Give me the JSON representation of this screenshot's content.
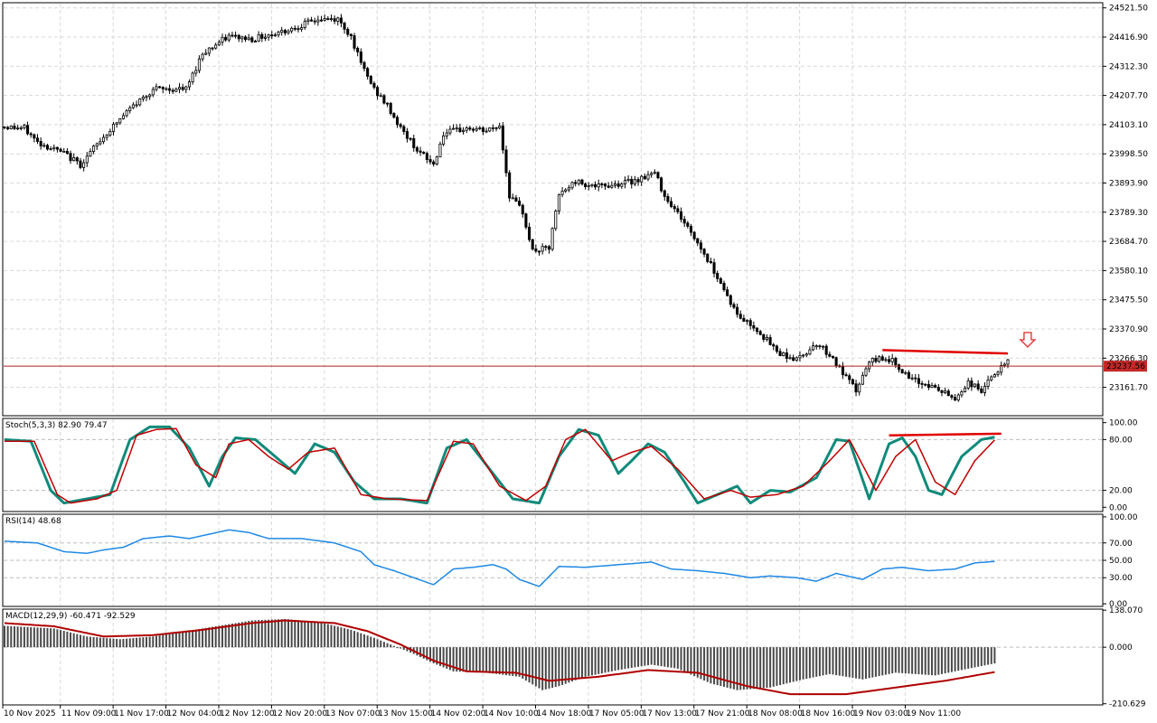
{
  "chart_data": [
    {
      "type": "candlestick",
      "name": "price",
      "ylim": [
        23060,
        24540
      ],
      "y_ticks": [
        "24521.50",
        "24416.90",
        "24312.30",
        "24207.70",
        "24103.10",
        "23998.50",
        "23893.90",
        "23789.30",
        "23684.70",
        "23580.10",
        "23475.50",
        "23370.90",
        "23266.30",
        "23161.70"
      ],
      "current_price": 23237.56,
      "current_price_label": "23237.56",
      "waypoints": [
        [
          0,
          24095
        ],
        [
          6,
          24090
        ],
        [
          10,
          24040
        ],
        [
          18,
          24000
        ],
        [
          23,
          23960
        ],
        [
          30,
          24060
        ],
        [
          38,
          24160
        ],
        [
          45,
          24230
        ],
        [
          55,
          24230
        ],
        [
          60,
          24360
        ],
        [
          68,
          24420
        ],
        [
          75,
          24410
        ],
        [
          85,
          24440
        ],
        [
          95,
          24480
        ],
        [
          101,
          24480
        ],
        [
          105,
          24420
        ],
        [
          108,
          24320
        ],
        [
          112,
          24230
        ],
        [
          116,
          24170
        ],
        [
          120,
          24090
        ],
        [
          126,
          24000
        ],
        [
          130,
          23960
        ],
        [
          133,
          24070
        ],
        [
          140,
          24090
        ],
        [
          146,
          24080
        ],
        [
          150,
          24100
        ],
        [
          153,
          23850
        ],
        [
          157,
          23790
        ],
        [
          160,
          23650
        ],
        [
          165,
          23660
        ],
        [
          168,
          23850
        ],
        [
          173,
          23900
        ],
        [
          180,
          23880
        ],
        [
          190,
          23900
        ],
        [
          197,
          23930
        ],
        [
          200,
          23850
        ],
        [
          205,
          23770
        ],
        [
          210,
          23680
        ],
        [
          216,
          23560
        ],
        [
          222,
          23420
        ],
        [
          228,
          23370
        ],
        [
          234,
          23290
        ],
        [
          240,
          23260
        ],
        [
          246,
          23320
        ],
        [
          250,
          23280
        ],
        [
          254,
          23210
        ],
        [
          258,
          23150
        ],
        [
          262,
          23250
        ],
        [
          266,
          23270
        ],
        [
          270,
          23250
        ],
        [
          274,
          23190
        ],
        [
          280,
          23170
        ],
        [
          285,
          23140
        ],
        [
          288,
          23120
        ],
        [
          292,
          23180
        ],
        [
          296,
          23150
        ],
        [
          300,
          23210
        ],
        [
          304,
          23250
        ]
      ],
      "resistance_line": {
        "from_index": 266,
        "to_index": 304,
        "from_value": 23295,
        "to_value": 23283
      },
      "arrow": {
        "index": 310,
        "value": 23300,
        "direction": "down"
      }
    },
    {
      "type": "line",
      "name": "stochastic",
      "label": "Stoch(5,3,3) 82.90 79.47",
      "ylim": [
        -5,
        105
      ],
      "y_ticks": [
        {
          "v": 100,
          "t": "100.00"
        },
        {
          "v": 80,
          "t": "80.00"
        },
        {
          "v": 20,
          "t": "20.00"
        },
        {
          "v": 0,
          "t": "0.00"
        }
      ],
      "levels": [
        80,
        20
      ],
      "main_waypoints": [
        [
          0,
          80
        ],
        [
          8,
          78
        ],
        [
          14,
          20
        ],
        [
          18,
          5
        ],
        [
          25,
          10
        ],
        [
          32,
          15
        ],
        [
          38,
          80
        ],
        [
          44,
          95
        ],
        [
          50,
          95
        ],
        [
          56,
          70
        ],
        [
          62,
          25
        ],
        [
          66,
          60
        ],
        [
          70,
          82
        ],
        [
          76,
          80
        ],
        [
          82,
          60
        ],
        [
          88,
          40
        ],
        [
          94,
          75
        ],
        [
          100,
          65
        ],
        [
          106,
          30
        ],
        [
          112,
          10
        ],
        [
          120,
          10
        ],
        [
          128,
          5
        ],
        [
          134,
          70
        ],
        [
          140,
          80
        ],
        [
          146,
          50
        ],
        [
          154,
          10
        ],
        [
          162,
          5
        ],
        [
          168,
          60
        ],
        [
          174,
          92
        ],
        [
          180,
          85
        ],
        [
          186,
          40
        ],
        [
          190,
          55
        ],
        [
          195,
          75
        ],
        [
          200,
          65
        ],
        [
          206,
          30
        ],
        [
          210,
          5
        ],
        [
          216,
          15
        ],
        [
          222,
          25
        ],
        [
          226,
          5
        ],
        [
          232,
          20
        ],
        [
          238,
          18
        ],
        [
          246,
          35
        ],
        [
          252,
          80
        ],
        [
          256,
          78
        ],
        [
          262,
          10
        ],
        [
          268,
          75
        ],
        [
          272,
          82
        ],
        [
          276,
          60
        ],
        [
          280,
          20
        ],
        [
          284,
          15
        ],
        [
          290,
          60
        ],
        [
          296,
          80
        ],
        [
          300,
          82.9
        ]
      ],
      "signal_waypoints": [
        [
          0,
          78
        ],
        [
          9,
          78
        ],
        [
          16,
          15
        ],
        [
          20,
          5
        ],
        [
          28,
          10
        ],
        [
          34,
          20
        ],
        [
          40,
          85
        ],
        [
          46,
          92
        ],
        [
          52,
          93
        ],
        [
          58,
          50
        ],
        [
          64,
          35
        ],
        [
          68,
          75
        ],
        [
          74,
          80
        ],
        [
          80,
          60
        ],
        [
          86,
          45
        ],
        [
          92,
          65
        ],
        [
          100,
          70
        ],
        [
          108,
          15
        ],
        [
          116,
          10
        ],
        [
          128,
          8
        ],
        [
          136,
          78
        ],
        [
          142,
          75
        ],
        [
          150,
          25
        ],
        [
          158,
          8
        ],
        [
          164,
          25
        ],
        [
          170,
          80
        ],
        [
          176,
          92
        ],
        [
          184,
          55
        ],
        [
          190,
          65
        ],
        [
          196,
          72
        ],
        [
          204,
          45
        ],
        [
          212,
          10
        ],
        [
          220,
          20
        ],
        [
          226,
          12
        ],
        [
          234,
          15
        ],
        [
          242,
          25
        ],
        [
          250,
          55
        ],
        [
          256,
          80
        ],
        [
          264,
          20
        ],
        [
          270,
          60
        ],
        [
          276,
          80
        ],
        [
          282,
          30
        ],
        [
          288,
          15
        ],
        [
          294,
          55
        ],
        [
          300,
          79.47
        ]
      ],
      "trend_line": {
        "from_index": 268,
        "to_index": 302,
        "from_value": 85,
        "to_value": 87
      }
    },
    {
      "type": "line",
      "name": "rsi",
      "label": "RSI(14) 48.68",
      "ylim": [
        -3,
        103
      ],
      "y_ticks": [
        {
          "v": 100,
          "t": "100.00"
        },
        {
          "v": 70,
          "t": "70.00"
        },
        {
          "v": 50,
          "t": "50.00"
        },
        {
          "v": 30,
          "t": "30.00"
        },
        {
          "v": 0,
          "t": "0.00"
        }
      ],
      "levels": [
        70,
        50,
        30
      ],
      "waypoints": [
        [
          0,
          72
        ],
        [
          10,
          70
        ],
        [
          18,
          60
        ],
        [
          25,
          58
        ],
        [
          30,
          62
        ],
        [
          36,
          65
        ],
        [
          42,
          75
        ],
        [
          50,
          78
        ],
        [
          56,
          75
        ],
        [
          62,
          80
        ],
        [
          68,
          85
        ],
        [
          74,
          82
        ],
        [
          80,
          75
        ],
        [
          90,
          75
        ],
        [
          100,
          70
        ],
        [
          108,
          60
        ],
        [
          112,
          45
        ],
        [
          118,
          38
        ],
        [
          124,
          30
        ],
        [
          130,
          22
        ],
        [
          136,
          40
        ],
        [
          142,
          42
        ],
        [
          148,
          45
        ],
        [
          152,
          40
        ],
        [
          156,
          28
        ],
        [
          162,
          20
        ],
        [
          168,
          43
        ],
        [
          176,
          42
        ],
        [
          186,
          45
        ],
        [
          196,
          48
        ],
        [
          202,
          40
        ],
        [
          210,
          38
        ],
        [
          218,
          35
        ],
        [
          226,
          30
        ],
        [
          232,
          32
        ],
        [
          240,
          30
        ],
        [
          246,
          26
        ],
        [
          252,
          35
        ],
        [
          260,
          28
        ],
        [
          266,
          40
        ],
        [
          272,
          42
        ],
        [
          280,
          38
        ],
        [
          288,
          40
        ],
        [
          294,
          47
        ],
        [
          300,
          48.68
        ]
      ]
    },
    {
      "type": "bar",
      "name": "macd",
      "label": "MACD(12,29,9) -60.471 -92.529",
      "ylim": [
        -215,
        142
      ],
      "y_ticks": [
        {
          "v": 138.07,
          "t": "138.070"
        },
        {
          "v": 0,
          "t": "0.000"
        },
        {
          "v": -210.629,
          "t": "-210.629"
        }
      ],
      "macd_value": -60.471,
      "signal_value": -92.529,
      "hist_waypoints": [
        [
          0,
          80
        ],
        [
          15,
          70
        ],
        [
          25,
          40
        ],
        [
          35,
          30
        ],
        [
          45,
          40
        ],
        [
          55,
          60
        ],
        [
          65,
          80
        ],
        [
          75,
          100
        ],
        [
          85,
          105
        ],
        [
          95,
          95
        ],
        [
          105,
          65
        ],
        [
          112,
          35
        ],
        [
          118,
          5
        ],
        [
          124,
          -25
        ],
        [
          130,
          -60
        ],
        [
          136,
          -90
        ],
        [
          146,
          -95
        ],
        [
          156,
          -110
        ],
        [
          163,
          -160
        ],
        [
          168,
          -145
        ],
        [
          176,
          -110
        ],
        [
          186,
          -85
        ],
        [
          196,
          -65
        ],
        [
          204,
          -80
        ],
        [
          214,
          -135
        ],
        [
          222,
          -160
        ],
        [
          232,
          -150
        ],
        [
          242,
          -120
        ],
        [
          250,
          -100
        ],
        [
          260,
          -120
        ],
        [
          270,
          -95
        ],
        [
          282,
          -105
        ],
        [
          292,
          -80
        ],
        [
          300,
          -60.471
        ]
      ],
      "signal_waypoints": [
        [
          0,
          90
        ],
        [
          15,
          78
        ],
        [
          30,
          40
        ],
        [
          45,
          45
        ],
        [
          60,
          65
        ],
        [
          75,
          90
        ],
        [
          85,
          100
        ],
        [
          100,
          90
        ],
        [
          110,
          60
        ],
        [
          120,
          10
        ],
        [
          130,
          -50
        ],
        [
          140,
          -90
        ],
        [
          155,
          -95
        ],
        [
          165,
          -125
        ],
        [
          180,
          -110
        ],
        [
          195,
          -85
        ],
        [
          210,
          -95
        ],
        [
          225,
          -145
        ],
        [
          238,
          -175
        ],
        [
          255,
          -175
        ],
        [
          270,
          -150
        ],
        [
          285,
          -125
        ],
        [
          300,
          -92.529
        ]
      ]
    }
  ],
  "time_axis": {
    "labels": [
      {
        "i": 0,
        "t": "10 Nov 2025"
      },
      {
        "i": 18,
        "t": "11 Nov 09:00"
      },
      {
        "i": 34,
        "t": "11 Nov 17:00"
      },
      {
        "i": 50,
        "t": "12 Nov 04:00"
      },
      {
        "i": 66,
        "t": "12 Nov 12:00"
      },
      {
        "i": 82,
        "t": "12 Nov 20:00"
      },
      {
        "i": 98,
        "t": "13 Nov 07:00"
      },
      {
        "i": 114,
        "t": "13 Nov 15:00"
      },
      {
        "i": 130,
        "t": "14 Nov 02:00"
      },
      {
        "i": 146,
        "t": "14 Nov 10:00"
      },
      {
        "i": 162,
        "t": "14 Nov 18:00"
      },
      {
        "i": 178,
        "t": "17 Nov 05:00"
      },
      {
        "i": 194,
        "t": "17 Nov 13:00"
      },
      {
        "i": 210,
        "t": "17 Nov 21:00"
      },
      {
        "i": 226,
        "t": "18 Nov 08:00"
      },
      {
        "i": 242,
        "t": "18 Nov 16:00"
      },
      {
        "i": 258,
        "t": "19 Nov 03:00"
      },
      {
        "i": 274,
        "t": "19 Nov 11:00"
      }
    ]
  },
  "colors": {
    "up_body": "#ffffff",
    "down_body": "#000000",
    "wick": "#000000",
    "price_line": "#b22222",
    "price_tag": "#c62828",
    "resistance": "#e00000",
    "arrow": "#e53935",
    "stoch_main": "#0f8a7a",
    "stoch_signal": "#c00000",
    "rsi": "#1e88e5",
    "macd_hist": "#4a4a4a",
    "macd_signal": "#b00000",
    "grid": "#d8d8d8",
    "border": "#000000"
  }
}
